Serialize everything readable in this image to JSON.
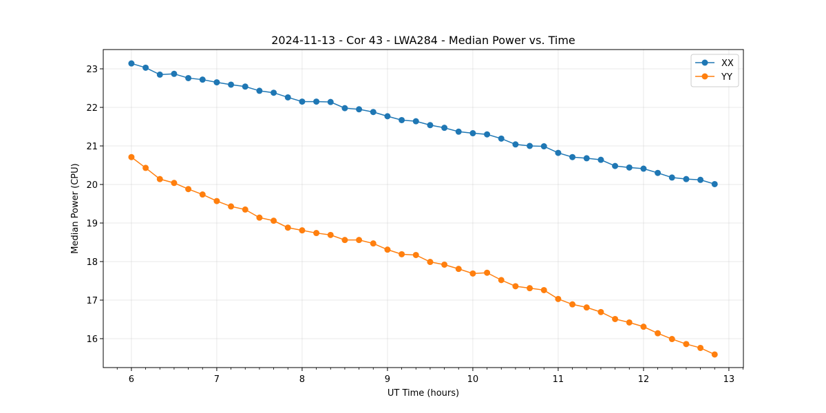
{
  "chart_data": {
    "type": "line",
    "title": "2024-11-13 - Cor 43 - LWA284 - Median Power vs. Time",
    "xlabel": "UT Time (hours)",
    "ylabel": "Median Power (CPU)",
    "xlim": [
      5.67,
      13.17
    ],
    "ylim": [
      15.25,
      23.5
    ],
    "xticks": [
      6,
      7,
      8,
      9,
      10,
      11,
      12,
      13
    ],
    "yticks": [
      16,
      17,
      18,
      19,
      20,
      21,
      22,
      23
    ],
    "grid": true,
    "legend_position": "top-right",
    "x": [
      6.0,
      6.1667,
      6.3333,
      6.5,
      6.6667,
      6.8333,
      7.0,
      7.1667,
      7.3333,
      7.5,
      7.6667,
      7.8333,
      8.0,
      8.1667,
      8.3333,
      8.5,
      8.6667,
      8.8333,
      9.0,
      9.1667,
      9.3333,
      9.5,
      9.6667,
      9.8333,
      10.0,
      10.1667,
      10.3333,
      10.5,
      10.6667,
      10.8333,
      11.0,
      11.1667,
      11.3333,
      11.5,
      11.6667,
      11.8333,
      12.0,
      12.1667,
      12.3333,
      12.5,
      12.6667,
      12.8333
    ],
    "series": [
      {
        "name": "XX",
        "color": "#1f77b4",
        "values": [
          23.14,
          23.03,
          22.85,
          22.87,
          22.76,
          22.72,
          22.65,
          22.59,
          22.54,
          22.43,
          22.38,
          22.26,
          22.15,
          22.15,
          22.14,
          21.98,
          21.95,
          21.88,
          21.77,
          21.67,
          21.64,
          21.54,
          21.47,
          21.37,
          21.33,
          21.3,
          21.19,
          21.04,
          21.0,
          20.99,
          20.82,
          20.71,
          20.68,
          20.64,
          20.48,
          20.44,
          20.41,
          20.3,
          20.18,
          20.14,
          20.12,
          20.01
        ]
      },
      {
        "name": "YY",
        "color": "#ff7f0e",
        "values": [
          20.71,
          20.43,
          20.14,
          20.04,
          19.88,
          19.74,
          19.57,
          19.43,
          19.35,
          19.14,
          19.06,
          18.88,
          18.81,
          18.74,
          18.69,
          18.56,
          18.56,
          18.47,
          18.31,
          18.19,
          18.17,
          17.99,
          17.92,
          17.81,
          17.69,
          17.71,
          17.52,
          17.36,
          17.31,
          17.26,
          17.03,
          16.89,
          16.81,
          16.69,
          16.51,
          16.42,
          16.31,
          16.14,
          15.99,
          15.86,
          15.76,
          15.59
        ]
      }
    ]
  }
}
